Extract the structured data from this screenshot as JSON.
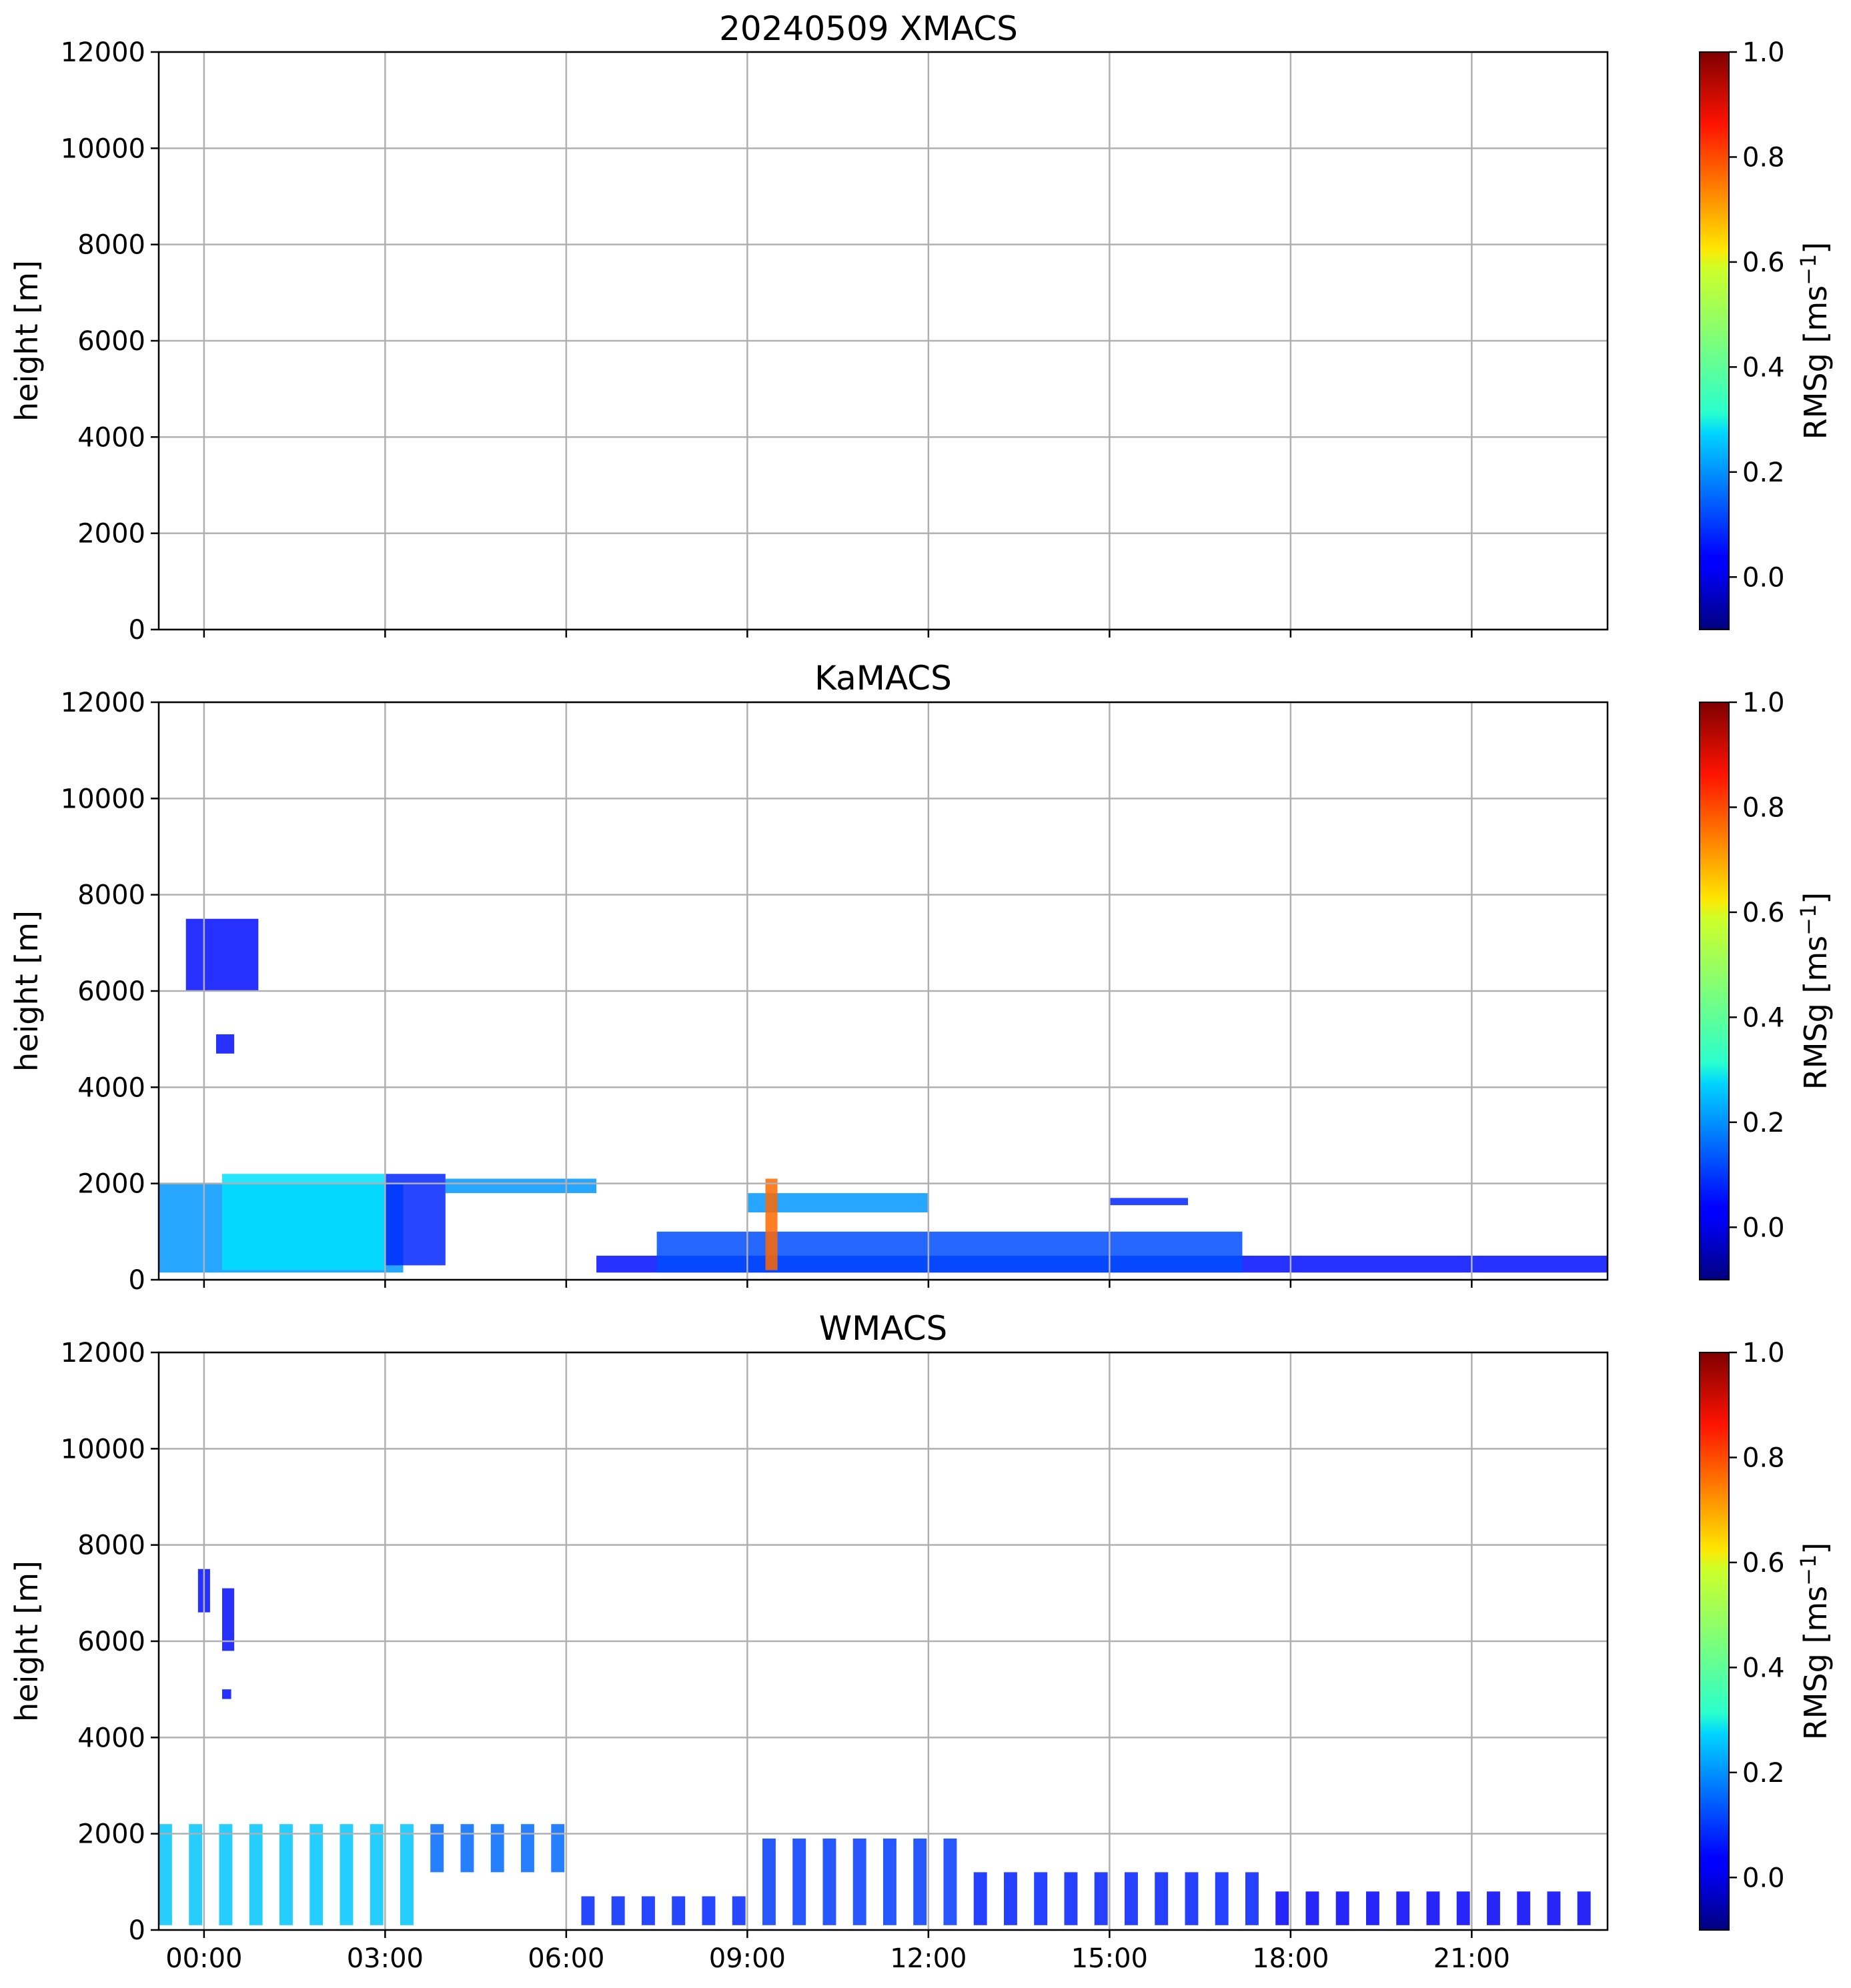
{
  "chart_data": [
    {
      "type": "heatmap",
      "title": "20240509 XMACS",
      "xlabel": "",
      "ylabel": "height [m]",
      "ylim": [
        0,
        12000
      ],
      "xlim_hours": [
        -0.75,
        23.25
      ],
      "x_ticks": [
        "00:00",
        "03:00",
        "06:00",
        "09:00",
        "12:00",
        "15:00",
        "18:00",
        "21:00"
      ],
      "x_ticks_shown": false,
      "y_ticks": [
        "0",
        "2000",
        "4000",
        "6000",
        "8000",
        "10000",
        "12000"
      ],
      "grid": true,
      "colorbar": {
        "label": "RMSg [ms",
        "label_sup": "−1",
        "label_end": "]",
        "range": [
          -0.1,
          1.0
        ],
        "ticks": [
          "0.0",
          "0.2",
          "0.4",
          "0.6",
          "0.8",
          "1.0"
        ],
        "colormap": "jet"
      },
      "regions": []
    },
    {
      "type": "heatmap",
      "title": "KaMACS",
      "xlabel": "",
      "ylabel": "height [m]",
      "ylim": [
        0,
        12000
      ],
      "xlim_hours": [
        -0.75,
        23.25
      ],
      "x_ticks": [
        "00:00",
        "03:00",
        "06:00",
        "09:00",
        "12:00",
        "15:00",
        "18:00",
        "21:00"
      ],
      "x_ticks_shown": false,
      "y_ticks": [
        "0",
        "2000",
        "4000",
        "6000",
        "8000",
        "10000",
        "12000"
      ],
      "grid": true,
      "colorbar": {
        "label": "RMSg [ms",
        "label_sup": "−1",
        "label_end": "]",
        "range": [
          -0.1,
          1.0
        ],
        "ticks": [
          "0.0",
          "0.2",
          "0.4",
          "0.6",
          "0.8",
          "1.0"
        ],
        "colormap": "jet"
      },
      "regions": [
        {
          "t0": -0.75,
          "t1": 3.3,
          "h0": 150,
          "h1": 2000,
          "value": 0.2
        },
        {
          "t0": 0.3,
          "t1": 3.0,
          "h0": 200,
          "h1": 2200,
          "value": 0.28
        },
        {
          "t0": 3.0,
          "t1": 4.0,
          "h0": 300,
          "h1": 2200,
          "value": 0.08
        },
        {
          "t0": 4.0,
          "t1": 6.5,
          "h0": 1800,
          "h1": 2100,
          "value": 0.2
        },
        {
          "t0": -0.3,
          "t1": 0.9,
          "h0": 6000,
          "h1": 7500,
          "value": 0.05
        },
        {
          "t0": 0.2,
          "t1": 0.5,
          "h0": 4700,
          "h1": 5100,
          "value": 0.05
        },
        {
          "t0": 6.5,
          "t1": 23.25,
          "h0": 150,
          "h1": 500,
          "value": 0.05
        },
        {
          "t0": 7.5,
          "t1": 17.2,
          "h0": 150,
          "h1": 1000,
          "value": 0.12
        },
        {
          "t0": 9.0,
          "t1": 12.0,
          "h0": 1400,
          "h1": 1800,
          "value": 0.2
        },
        {
          "t0": 15.0,
          "t1": 16.3,
          "h0": 1550,
          "h1": 1700,
          "value": 0.08
        },
        {
          "t0": 9.3,
          "t1": 9.5,
          "h0": 200,
          "h1": 2100,
          "value": 0.75
        }
      ]
    },
    {
      "type": "heatmap",
      "title": "WMACS",
      "xlabel": "",
      "ylabel": "height [m]",
      "ylim": [
        0,
        12000
      ],
      "xlim_hours": [
        -0.75,
        23.25
      ],
      "x_ticks": [
        "00:00",
        "03:00",
        "06:00",
        "09:00",
        "12:00",
        "15:00",
        "18:00",
        "21:00"
      ],
      "x_ticks_shown": true,
      "y_ticks": [
        "0",
        "2000",
        "4000",
        "6000",
        "8000",
        "10000",
        "12000"
      ],
      "grid": true,
      "colorbar": {
        "label": "RMSg [ms",
        "label_sup": "−1",
        "label_end": "]",
        "range": [
          -0.1,
          1.0
        ],
        "ticks": [
          "0.0",
          "0.2",
          "0.4",
          "0.6",
          "0.8",
          "1.0"
        ],
        "colormap": "jet"
      },
      "stripes": {
        "t_start": -0.75,
        "period_hours": 0.5,
        "width_hours": 0.22,
        "count": 48
      },
      "stripe_profile": [
        {
          "t0": -0.75,
          "t1": 3.5,
          "h0": 100,
          "h1": 2200,
          "value": 0.25
        },
        {
          "t0": 3.5,
          "t1": 6.0,
          "h0": 1200,
          "h1": 2200,
          "value": 0.15
        },
        {
          "t0": 6.0,
          "t1": 9.0,
          "h0": 100,
          "h1": 700,
          "value": 0.08
        },
        {
          "t0": 9.0,
          "t1": 12.5,
          "h0": 100,
          "h1": 1900,
          "value": 0.1
        },
        {
          "t0": 12.5,
          "t1": 17.5,
          "h0": 100,
          "h1": 1200,
          "value": 0.07
        },
        {
          "t0": 17.5,
          "t1": 23.25,
          "h0": 100,
          "h1": 800,
          "value": 0.03
        }
      ],
      "regions": [
        {
          "t0": -0.1,
          "t1": 0.1,
          "h0": 6600,
          "h1": 7500,
          "value": 0.05
        },
        {
          "t0": 0.3,
          "t1": 0.5,
          "h0": 5800,
          "h1": 7100,
          "value": 0.05
        },
        {
          "t0": 0.3,
          "t1": 0.45,
          "h0": 4800,
          "h1": 5000,
          "value": 0.05
        }
      ]
    }
  ]
}
